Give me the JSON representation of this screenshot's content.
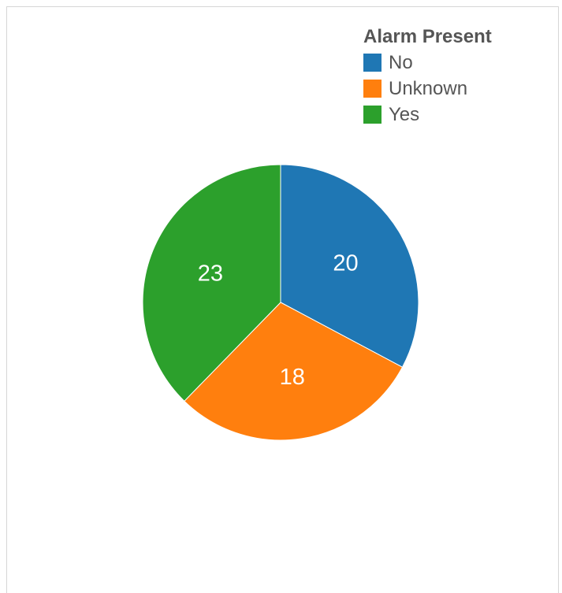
{
  "chart_data": {
    "type": "pie",
    "legend_title": "Alarm Present",
    "legend_position": "top-right",
    "categories": [
      "No",
      "Unknown",
      "Yes"
    ],
    "values": [
      20,
      18,
      23
    ],
    "colors": [
      "#1f77b4",
      "#ff7f0e",
      "#2ca02c"
    ]
  }
}
